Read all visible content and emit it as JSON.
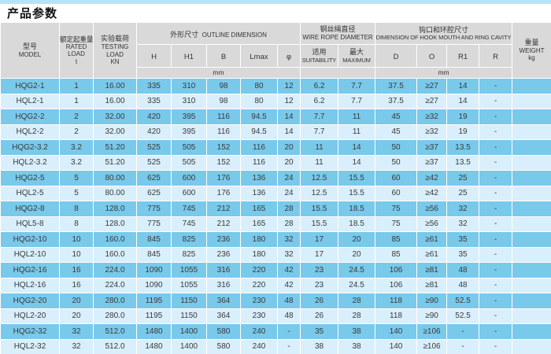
{
  "page": {
    "title": "产品参数"
  },
  "colors": {
    "top_strip": "#b4e5f4",
    "header_bg": "#d9d9d9",
    "row_dark": "#79c9eb",
    "row_light": "#d9effb",
    "grid": "#ffffff"
  },
  "table": {
    "header": {
      "model": {
        "zh": "型号",
        "en": "MODEL"
      },
      "rated_load": {
        "zh": "额定起重量",
        "en_line1": "RATED",
        "en_line2": "LOAD",
        "unit": "t"
      },
      "testing_load": {
        "zh": "实验载荷",
        "en_line1": "TESTING",
        "en_line2": "LOAD",
        "unit": "KN"
      },
      "outline_group": {
        "zh": "外形尺寸",
        "en": "OUTLINE DIMENSION"
      },
      "wire_group": {
        "zh": "钢丝绳直径",
        "en": "WIRE ROPE DIAMETER"
      },
      "hook_group": {
        "zh": "钩口和环腔尺寸",
        "en": "DIMENSION OF HOOK MOUTH AND RING CAVITY"
      },
      "weight": {
        "zh": "重量",
        "en": "WEIGHT",
        "unit": "kg"
      },
      "sub": {
        "h": "H",
        "h1": "H1",
        "b": "B",
        "lmax": "Lmax",
        "phi": "φ",
        "suitability_zh": "适用",
        "suitability_en": "SUITABILITY",
        "maximum_zh": "最大",
        "maximum_en": "MAXIMUM",
        "d": "D",
        "o": "O",
        "r1": "R1",
        "r": "R"
      },
      "unit_mm_outline": "mm",
      "unit_mm_hook": "mm"
    },
    "column_keys": [
      "model",
      "rated-load",
      "testing-load",
      "h",
      "h1",
      "b",
      "lmax",
      "phi",
      "suitability",
      "maximum",
      "d",
      "o",
      "r1",
      "r",
      "weight"
    ],
    "rows": [
      [
        "HQG2-1",
        "1",
        "16.00",
        "335",
        "310",
        "98",
        "80",
        "12",
        "6.2",
        "7.7",
        "37.5",
        "≥27",
        "14",
        "-",
        ""
      ],
      [
        "HQL2-1",
        "1",
        "16.00",
        "335",
        "310",
        "98",
        "80",
        "12",
        "6.2",
        "7.7",
        "37.5",
        "≥27",
        "14",
        "-",
        ""
      ],
      [
        "HQG2-2",
        "2",
        "32.00",
        "420",
        "395",
        "116",
        "94.5",
        "14",
        "7.7",
        "11",
        "45",
        "≥32",
        "19",
        "-",
        ""
      ],
      [
        "HQL2-2",
        "2",
        "32.00",
        "420",
        "395",
        "116",
        "94.5",
        "14",
        "7.7",
        "11",
        "45",
        "≥32",
        "19",
        "-",
        ""
      ],
      [
        "HQG2-3.2",
        "3.2",
        "51.20",
        "525",
        "505",
        "152",
        "116",
        "20",
        "11",
        "14",
        "50",
        "≥37",
        "13.5",
        "-",
        ""
      ],
      [
        "HQL2-3.2",
        "3.2",
        "51.20",
        "525",
        "505",
        "152",
        "116",
        "20",
        "11",
        "14",
        "50",
        "≥37",
        "13.5",
        "-",
        ""
      ],
      [
        "HQG2-5",
        "5",
        "80.00",
        "625",
        "600",
        "176",
        "136",
        "24",
        "12.5",
        "15.5",
        "60",
        "≥42",
        "25",
        "-",
        ""
      ],
      [
        "HQL2-5",
        "5",
        "80.00",
        "625",
        "600",
        "176",
        "136",
        "24",
        "12.5",
        "15.5",
        "60",
        "≥42",
        "25",
        "-",
        ""
      ],
      [
        "HQG2-8",
        "8",
        "128.0",
        "775",
        "745",
        "212",
        "165",
        "28",
        "15.5",
        "18.5",
        "75",
        "≥56",
        "32",
        "-",
        ""
      ],
      [
        "HQL5-8",
        "8",
        "128.0",
        "775",
        "745",
        "212",
        "165",
        "28",
        "15.5",
        "18.5",
        "75",
        "≥56",
        "32",
        "-",
        ""
      ],
      [
        "HQG2-10",
        "10",
        "160.0",
        "845",
        "825",
        "236",
        "180",
        "32",
        "17",
        "20",
        "85",
        "≥61",
        "35",
        "-",
        ""
      ],
      [
        "HQL2-10",
        "10",
        "160.0",
        "845",
        "825",
        "236",
        "180",
        "32",
        "17",
        "20",
        "85",
        "≥61",
        "35",
        "-",
        ""
      ],
      [
        "HQG2-16",
        "16",
        "224.0",
        "1090",
        "1055",
        "316",
        "220",
        "42",
        "23",
        "24.5",
        "106",
        "≥81",
        "48",
        "-",
        ""
      ],
      [
        "HQL2-16",
        "16",
        "224.0",
        "1090",
        "1055",
        "316",
        "220",
        "42",
        "23",
        "24.5",
        "106",
        "≥81",
        "48",
        "-",
        ""
      ],
      [
        "HQG2-20",
        "20",
        "280.0",
        "1195",
        "1150",
        "364",
        "230",
        "48",
        "26",
        "28",
        "118",
        "≥90",
        "52.5",
        "-",
        ""
      ],
      [
        "HQL2-20",
        "20",
        "280.0",
        "1195",
        "1150",
        "364",
        "230",
        "48",
        "26",
        "28",
        "118",
        "≥90",
        "52.5",
        "-",
        ""
      ],
      [
        "HQG2-32",
        "32",
        "512.0",
        "1480",
        "1400",
        "580",
        "240",
        "-",
        "35",
        "38",
        "140",
        "≥106",
        "-",
        "-",
        ""
      ],
      [
        "HQL2-32",
        "32",
        "512.0",
        "1480",
        "1400",
        "580",
        "240",
        "-",
        "38",
        "38",
        "140",
        "≥106",
        "-",
        "-",
        ""
      ]
    ]
  }
}
